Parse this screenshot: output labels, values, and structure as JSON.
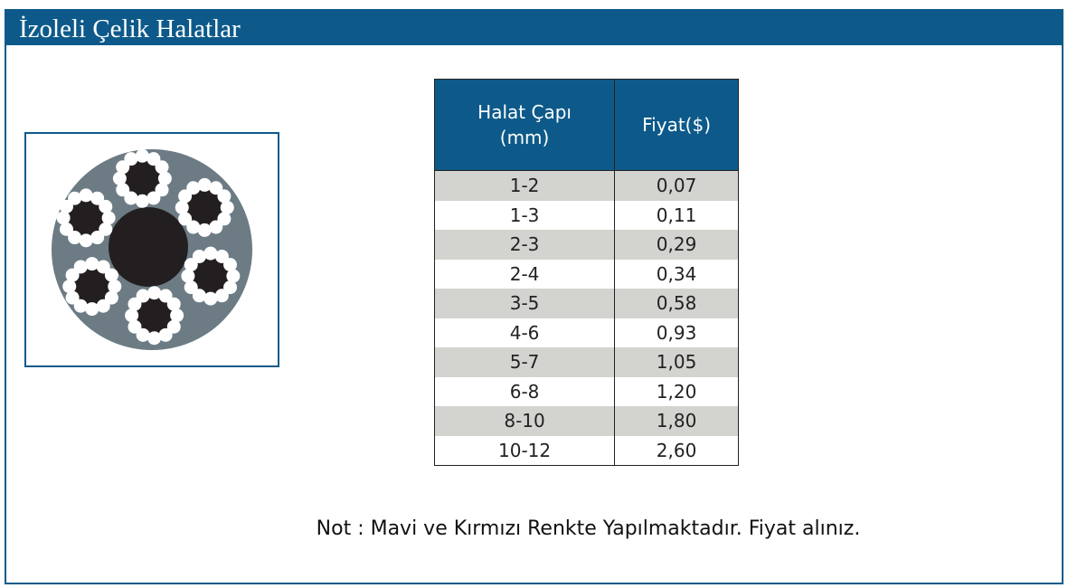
{
  "header": {
    "title": "İzoleli Çelik Halatlar"
  },
  "table": {
    "columns": [
      "Halat Çapı (mm)",
      "Fiyat($)"
    ],
    "rows": [
      [
        "1-2",
        "0,07"
      ],
      [
        "1-3",
        "0,11"
      ],
      [
        "2-3",
        "0,29"
      ],
      [
        "2-4",
        "0,34"
      ],
      [
        "3-5",
        "0,58"
      ],
      [
        "4-6",
        "0,93"
      ],
      [
        "5-7",
        "1,05"
      ],
      [
        "6-8",
        "1,20"
      ],
      [
        "8-10",
        "1,80"
      ],
      [
        "10-12",
        "2,60"
      ]
    ]
  },
  "note": "Not : Mavi ve Kırmızı Renkte Yapılmaktadır. Fiyat alınız."
}
